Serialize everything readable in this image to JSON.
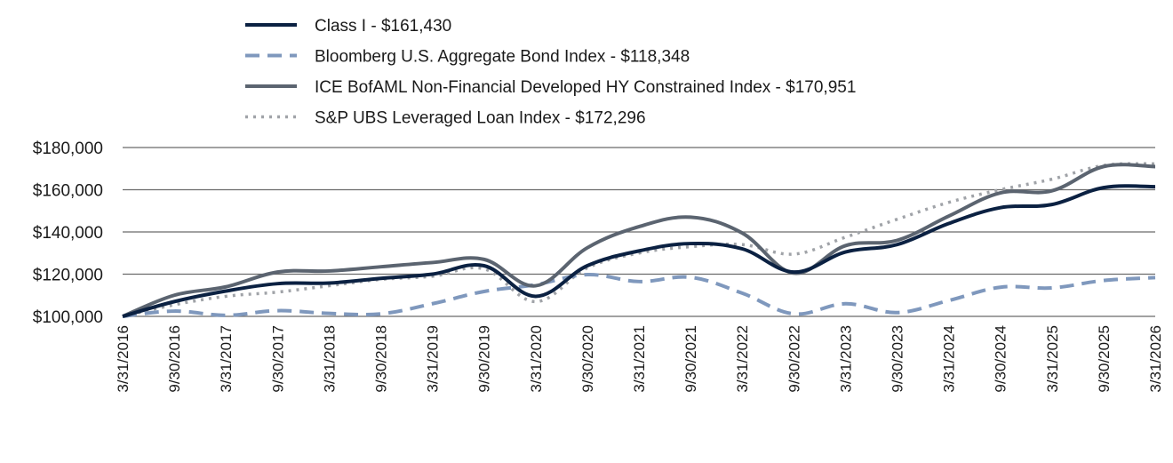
{
  "chart_data": {
    "type": "line",
    "x": [
      "3/31/2016",
      "9/30/2016",
      "3/31/2017",
      "9/30/2017",
      "3/31/2018",
      "9/30/2018",
      "3/31/2019",
      "9/30/2019",
      "3/31/2020",
      "9/30/2020",
      "3/31/2021",
      "9/30/2021",
      "3/31/2022",
      "9/30/2022",
      "3/31/2023",
      "9/30/2023",
      "3/31/2024",
      "9/30/2024",
      "3/31/2025",
      "9/30/2025",
      "3/31/2026"
    ],
    "ylim": [
      100000,
      180000
    ],
    "yticks": [
      100000,
      120000,
      140000,
      160000,
      180000
    ],
    "ytick_labels": [
      "$100,000",
      "$120,000",
      "$140,000",
      "$160,000",
      "$180,000"
    ],
    "grid": true,
    "legend_position": "top-left",
    "series": [
      {
        "name": "Class I - $161,430",
        "color": "#0b2142",
        "style": "solid",
        "values": [
          100000,
          107000,
          112000,
          115500,
          115800,
          118000,
          120000,
          124000,
          109500,
          124000,
          131000,
          134500,
          132000,
          121000,
          130500,
          134000,
          144000,
          151500,
          153000,
          161000,
          161430
        ]
      },
      {
        "name": "Bloomberg U.S. Aggregate Bond Index - $118,348",
        "color": "#7f98bd",
        "style": "dashed",
        "values": [
          100000,
          102500,
          100500,
          102700,
          101400,
          101200,
          106000,
          111800,
          115000,
          119800,
          116500,
          118500,
          111000,
          101200,
          106000,
          101800,
          107500,
          113800,
          113500,
          117000,
          118348
        ]
      },
      {
        "name": "ICE BofAML Non-Financial Developed HY Constrained Index - $170,951",
        "color": "#5b6470",
        "style": "solid",
        "values": [
          100000,
          110000,
          114000,
          121000,
          121500,
          123500,
          125500,
          127000,
          114500,
          132500,
          142500,
          147000,
          139500,
          120500,
          133500,
          136000,
          147500,
          158500,
          159500,
          171000,
          170951
        ]
      },
      {
        "name": "S&P UBS Leveraged Loan Index - $172,296",
        "color": "#a0a3a8",
        "style": "dotted",
        "values": [
          100000,
          105500,
          109500,
          111500,
          114500,
          117500,
          119000,
          122500,
          107000,
          123000,
          130000,
          133000,
          134000,
          129500,
          137500,
          146000,
          154000,
          160000,
          165000,
          171500,
          172296
        ]
      }
    ]
  }
}
